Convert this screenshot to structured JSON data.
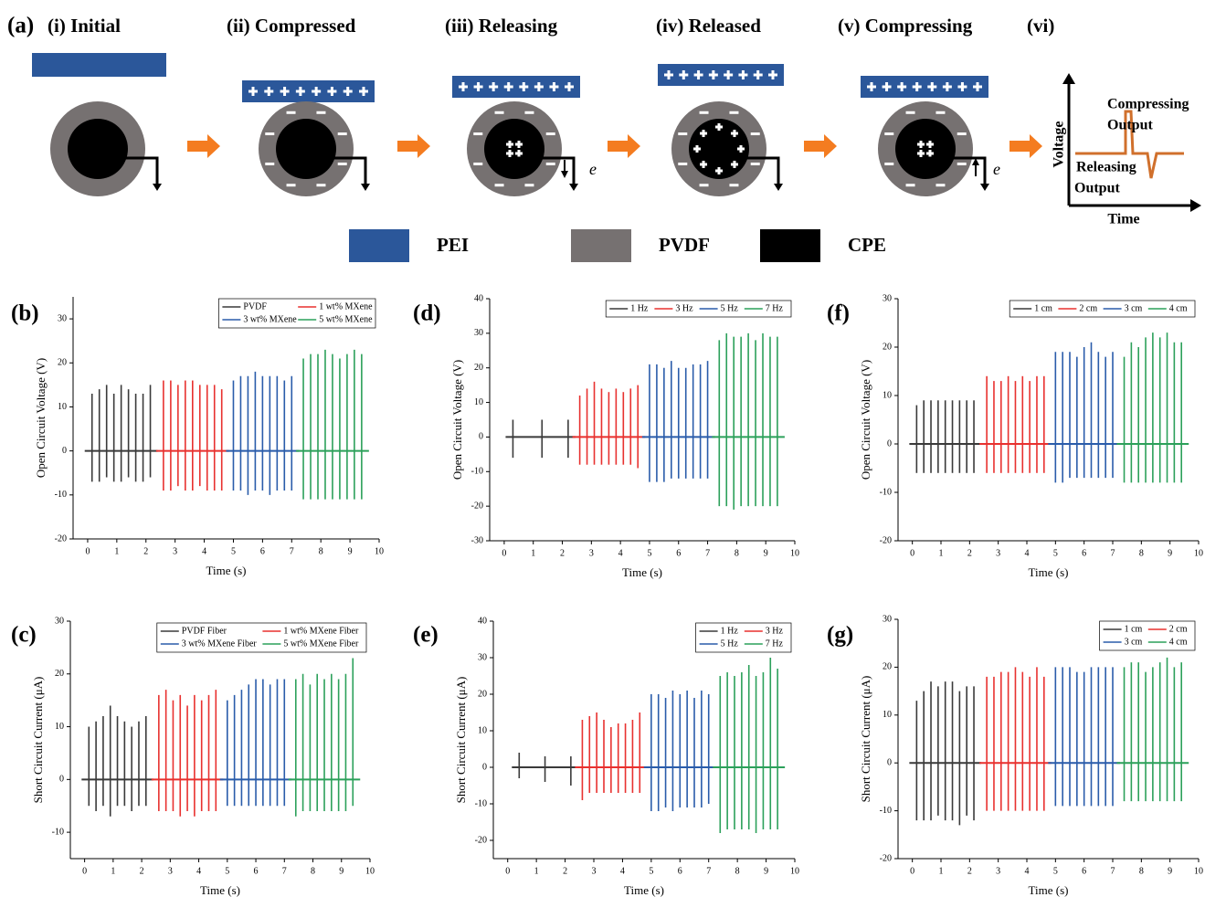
{
  "diagram": {
    "panel": "(a)",
    "stages": [
      "(i) Initial",
      "(ii) Compressed",
      "(iii) Releasing",
      "(iv) Released",
      "(v) Compressing",
      "(vi)"
    ],
    "electron_labels": [
      "e",
      "e"
    ],
    "graph": {
      "y_label": "Voltage",
      "x_label": "Time",
      "compressing_label": [
        "Compressing",
        "Output"
      ],
      "releasing_label": [
        "Releasing",
        "Output"
      ]
    },
    "materials": [
      {
        "name": "PEI",
        "color": "#2b579a"
      },
      {
        "name": "PVDF",
        "color": "#767171"
      },
      {
        "name": "CPE",
        "color": "#000000"
      }
    ]
  },
  "chart_data": [
    {
      "type": "spike",
      "panel": "(b)",
      "xlabel": "Time (s)",
      "ylabel": "Open Circuit Voltage (V)",
      "xlim": [
        -0.5,
        10
      ],
      "xticks": [
        0,
        1,
        2,
        3,
        4,
        5,
        6,
        7,
        8,
        9,
        10
      ],
      "ylim": [
        -20,
        35
      ],
      "yticks": [
        -20,
        -10,
        0,
        10,
        20,
        30
      ],
      "legend": "upper right",
      "legend_columns": 2,
      "series": [
        {
          "name": "PVDF",
          "color": "#3a3a3a",
          "x": [
            0.15,
            0.4,
            0.65,
            0.9,
            1.15,
            1.4,
            1.65,
            1.9,
            2.15
          ],
          "values": [
            13,
            14,
            15,
            13,
            15,
            14,
            13,
            13,
            15
          ],
          "lows": [
            -7,
            -7,
            -6,
            -7,
            -7,
            -6,
            -7,
            -7,
            -6
          ]
        },
        {
          "name": "1 wt% MXene",
          "color": "#e8312f",
          "x": [
            2.6,
            2.85,
            3.1,
            3.35,
            3.6,
            3.85,
            4.1,
            4.35,
            4.6
          ],
          "values": [
            16,
            16,
            15,
            16,
            16,
            15,
            15,
            15,
            14
          ],
          "lows": [
            -9,
            -9,
            -8,
            -9,
            -9,
            -8,
            -9,
            -9,
            -9
          ]
        },
        {
          "name": "3 wt% MXene",
          "color": "#2a5caa",
          "x": [
            5.0,
            5.25,
            5.5,
            5.75,
            6.0,
            6.25,
            6.5,
            6.75,
            7.0
          ],
          "values": [
            16,
            17,
            17,
            18,
            17,
            17,
            17,
            16,
            17
          ],
          "lows": [
            -9,
            -9,
            -10,
            -9,
            -9,
            -10,
            -9,
            -9,
            -9
          ]
        },
        {
          "name": "5 wt% MXene",
          "color": "#2ca05a",
          "x": [
            7.4,
            7.65,
            7.9,
            8.15,
            8.4,
            8.65,
            8.9,
            9.15,
            9.4
          ],
          "values": [
            21,
            22,
            22,
            23,
            22,
            21,
            22,
            23,
            22
          ],
          "lows": [
            -11,
            -11,
            -11,
            -11,
            -11,
            -11,
            -11,
            -11,
            -11
          ]
        }
      ]
    },
    {
      "type": "spike",
      "panel": "(d)",
      "xlabel": "Time (s)",
      "ylabel": "Open Circuit Voltage (V)",
      "xlim": [
        -0.5,
        10
      ],
      "xticks": [
        0,
        1,
        2,
        3,
        4,
        5,
        6,
        7,
        8,
        9,
        10
      ],
      "ylim": [
        -30,
        40
      ],
      "yticks": [
        -30,
        -20,
        -10,
        0,
        10,
        20,
        30,
        40
      ],
      "legend": "upper right",
      "legend_columns": 4,
      "series": [
        {
          "name": "1 Hz",
          "color": "#3a3a3a",
          "x": [
            0.3,
            1.3,
            2.2
          ],
          "values": [
            5,
            5,
            5
          ],
          "lows": [
            -6,
            -6,
            -6
          ]
        },
        {
          "name": "3 Hz",
          "color": "#e8312f",
          "x": [
            2.6,
            2.85,
            3.1,
            3.35,
            3.6,
            3.85,
            4.1,
            4.35,
            4.6
          ],
          "values": [
            12,
            14,
            16,
            14,
            13,
            14,
            13,
            14,
            15
          ],
          "lows": [
            -8,
            -8,
            -8,
            -8,
            -8,
            -8,
            -8,
            -8,
            -9
          ]
        },
        {
          "name": "5 Hz",
          "color": "#2a5caa",
          "x": [
            5.0,
            5.25,
            5.5,
            5.75,
            6.0,
            6.25,
            6.5,
            6.75,
            7.0
          ],
          "values": [
            21,
            21,
            20,
            22,
            20,
            20,
            21,
            21,
            22
          ],
          "lows": [
            -13,
            -13,
            -13,
            -12,
            -12,
            -12,
            -12,
            -12,
            -12
          ]
        },
        {
          "name": "7 Hz",
          "color": "#2ca05a",
          "x": [
            7.4,
            7.65,
            7.9,
            8.15,
            8.4,
            8.65,
            8.9,
            9.15,
            9.4
          ],
          "values": [
            28,
            30,
            29,
            29,
            30,
            28,
            30,
            29,
            29
          ],
          "lows": [
            -20,
            -20,
            -21,
            -20,
            -20,
            -20,
            -20,
            -20,
            -20
          ]
        }
      ]
    },
    {
      "type": "spike",
      "panel": "(f)",
      "xlabel": "Time (s)",
      "ylabel": "Open Circuit Voltage (V)",
      "xlim": [
        -0.5,
        10
      ],
      "xticks": [
        0,
        1,
        2,
        3,
        4,
        5,
        6,
        7,
        8,
        9,
        10
      ],
      "ylim": [
        -20,
        30
      ],
      "yticks": [
        -20,
        -10,
        0,
        10,
        20,
        30
      ],
      "legend": "upper right",
      "legend_columns": 4,
      "series": [
        {
          "name": "1 cm",
          "color": "#3a3a3a",
          "x": [
            0.15,
            0.4,
            0.65,
            0.9,
            1.15,
            1.4,
            1.65,
            1.9,
            2.15
          ],
          "values": [
            8,
            9,
            9,
            9,
            9,
            9,
            9,
            9,
            9
          ],
          "lows": [
            -6,
            -6,
            -6,
            -6,
            -6,
            -6,
            -6,
            -6,
            -6
          ]
        },
        {
          "name": "2 cm",
          "color": "#e8312f",
          "x": [
            2.6,
            2.85,
            3.1,
            3.35,
            3.6,
            3.85,
            4.1,
            4.35,
            4.6
          ],
          "values": [
            14,
            13,
            13,
            14,
            13,
            14,
            13,
            14,
            14
          ],
          "lows": [
            -6,
            -6,
            -6,
            -6,
            -6,
            -6,
            -6,
            -6,
            -6
          ]
        },
        {
          "name": "3 cm",
          "color": "#2a5caa",
          "x": [
            5.0,
            5.25,
            5.5,
            5.75,
            6.0,
            6.25,
            6.5,
            6.75,
            7.0
          ],
          "values": [
            19,
            19,
            19,
            18,
            20,
            21,
            19,
            18,
            19
          ],
          "lows": [
            -8,
            -8,
            -7,
            -7,
            -7,
            -7,
            -7,
            -7,
            -7
          ]
        },
        {
          "name": "4 cm",
          "color": "#2ca05a",
          "x": [
            7.4,
            7.65,
            7.9,
            8.15,
            8.4,
            8.65,
            8.9,
            9.15,
            9.4
          ],
          "values": [
            18,
            21,
            20,
            22,
            23,
            22,
            23,
            21,
            21
          ],
          "lows": [
            -8,
            -8,
            -8,
            -8,
            -8,
            -8,
            -8,
            -8,
            -8
          ]
        }
      ]
    },
    {
      "type": "spike",
      "panel": "(c)",
      "xlabel": "Time (s)",
      "ylabel": "Short Circuit Current (μA)",
      "xlim": [
        -0.5,
        10
      ],
      "xticks": [
        0,
        1,
        2,
        3,
        4,
        5,
        6,
        7,
        8,
        9,
        10
      ],
      "ylim": [
        -15,
        30
      ],
      "yticks": [
        -10,
        0,
        10,
        20,
        30
      ],
      "legend": "upper right",
      "legend_columns": 2,
      "series": [
        {
          "name": "PVDF Fiber",
          "color": "#3a3a3a",
          "x": [
            0.15,
            0.4,
            0.65,
            0.9,
            1.15,
            1.4,
            1.65,
            1.9,
            2.15
          ],
          "values": [
            10,
            11,
            12,
            14,
            12,
            11,
            10,
            11,
            12
          ],
          "lows": [
            -5,
            -6,
            -5,
            -7,
            -5,
            -5,
            -6,
            -5,
            -5
          ]
        },
        {
          "name": "1 wt% MXene Fiber",
          "color": "#e8312f",
          "x": [
            2.6,
            2.85,
            3.1,
            3.35,
            3.6,
            3.85,
            4.1,
            4.35,
            4.6
          ],
          "values": [
            16,
            17,
            15,
            16,
            14,
            16,
            15,
            16,
            17
          ],
          "lows": [
            -6,
            -6,
            -6,
            -7,
            -6,
            -7,
            -6,
            -6,
            -6
          ]
        },
        {
          "name": "3 wt% MXene Fiber",
          "color": "#2a5caa",
          "x": [
            5.0,
            5.25,
            5.5,
            5.75,
            6.0,
            6.25,
            6.5,
            6.75,
            7.0
          ],
          "values": [
            15,
            16,
            17,
            18,
            19,
            19,
            18,
            19,
            19
          ],
          "lows": [
            -5,
            -5,
            -5,
            -5,
            -5,
            -5,
            -5,
            -5,
            -5
          ]
        },
        {
          "name": "5 wt% MXene Fiber",
          "color": "#2ca05a",
          "x": [
            7.4,
            7.65,
            7.9,
            8.15,
            8.4,
            8.65,
            8.9,
            9.15,
            9.4
          ],
          "values": [
            19,
            20,
            18,
            20,
            19,
            20,
            19,
            20,
            23
          ],
          "lows": [
            -7,
            -6,
            -6,
            -6,
            -6,
            -6,
            -6,
            -6,
            -5
          ]
        }
      ]
    },
    {
      "type": "spike",
      "panel": "(e)",
      "xlabel": "Time (s)",
      "ylabel": "Short Circuit Current (μA)",
      "xlim": [
        -0.5,
        10
      ],
      "xticks": [
        0,
        1,
        2,
        3,
        4,
        5,
        6,
        7,
        8,
        9,
        10
      ],
      "ylim": [
        -25,
        40
      ],
      "yticks": [
        -20,
        -10,
        0,
        10,
        20,
        30,
        40
      ],
      "legend": "upper right",
      "legend_columns": 2,
      "series": [
        {
          "name": "1 Hz",
          "color": "#3a3a3a",
          "x": [
            0.4,
            1.3,
            2.2
          ],
          "values": [
            4,
            3,
            3
          ],
          "lows": [
            -3,
            -4,
            -5
          ]
        },
        {
          "name": "3 Hz",
          "color": "#e8312f",
          "x": [
            2.6,
            2.85,
            3.1,
            3.35,
            3.6,
            3.85,
            4.1,
            4.35,
            4.6
          ],
          "values": [
            13,
            14,
            15,
            13,
            11,
            12,
            12,
            13,
            15
          ],
          "lows": [
            -9,
            -7,
            -7,
            -7,
            -7,
            -7,
            -7,
            -7,
            -7
          ]
        },
        {
          "name": "5 Hz",
          "color": "#2a5caa",
          "x": [
            5.0,
            5.25,
            5.5,
            5.75,
            6.0,
            6.25,
            6.5,
            6.75,
            7.0
          ],
          "values": [
            20,
            20,
            19,
            21,
            20,
            21,
            19,
            21,
            20
          ],
          "lows": [
            -12,
            -12,
            -11,
            -12,
            -11,
            -11,
            -11,
            -11,
            -10
          ]
        },
        {
          "name": "7 Hz",
          "color": "#2ca05a",
          "x": [
            7.4,
            7.65,
            7.9,
            8.15,
            8.4,
            8.65,
            8.9,
            9.15,
            9.4
          ],
          "values": [
            25,
            26,
            25,
            26,
            28,
            25,
            26,
            30,
            27
          ],
          "lows": [
            -18,
            -17,
            -17,
            -17,
            -17,
            -18,
            -17,
            -17,
            -17
          ]
        }
      ]
    },
    {
      "type": "spike",
      "panel": "(g)",
      "xlabel": "Time (s)",
      "ylabel": "Short Circuit Current (μA)",
      "xlim": [
        -0.5,
        10
      ],
      "xticks": [
        0,
        1,
        2,
        3,
        4,
        5,
        6,
        7,
        8,
        9,
        10
      ],
      "ylim": [
        -20,
        30
      ],
      "yticks": [
        -20,
        -10,
        0,
        10,
        20,
        30
      ],
      "legend": "upper right",
      "legend_columns": 2,
      "series": [
        {
          "name": "1 cm",
          "color": "#3a3a3a",
          "x": [
            0.15,
            0.4,
            0.65,
            0.9,
            1.15,
            1.4,
            1.65,
            1.9,
            2.15
          ],
          "values": [
            13,
            15,
            17,
            16,
            17,
            17,
            15,
            16,
            16
          ],
          "lows": [
            -12,
            -12,
            -12,
            -11,
            -12,
            -12,
            -13,
            -11,
            -12
          ]
        },
        {
          "name": "2 cm",
          "color": "#e8312f",
          "x": [
            2.6,
            2.85,
            3.1,
            3.35,
            3.6,
            3.85,
            4.1,
            4.35,
            4.6
          ],
          "values": [
            18,
            18,
            19,
            19,
            20,
            19,
            18,
            20,
            18
          ],
          "lows": [
            -10,
            -10,
            -10,
            -10,
            -10,
            -10,
            -10,
            -10,
            -10
          ]
        },
        {
          "name": "3 cm",
          "color": "#2a5caa",
          "x": [
            5.0,
            5.25,
            5.5,
            5.75,
            6.0,
            6.25,
            6.5,
            6.75,
            7.0
          ],
          "values": [
            20,
            20,
            20,
            19,
            19,
            20,
            20,
            20,
            20
          ],
          "lows": [
            -9,
            -9,
            -9,
            -9,
            -9,
            -9,
            -9,
            -9,
            -9
          ]
        },
        {
          "name": "4 cm",
          "color": "#2ca05a",
          "x": [
            7.4,
            7.65,
            7.9,
            8.15,
            8.4,
            8.65,
            8.9,
            9.15,
            9.4
          ],
          "values": [
            20,
            21,
            21,
            19,
            20,
            21,
            22,
            20,
            21
          ],
          "lows": [
            -8,
            -8,
            -8,
            -8,
            -8,
            -8,
            -8,
            -8,
            -8
          ]
        }
      ]
    }
  ]
}
